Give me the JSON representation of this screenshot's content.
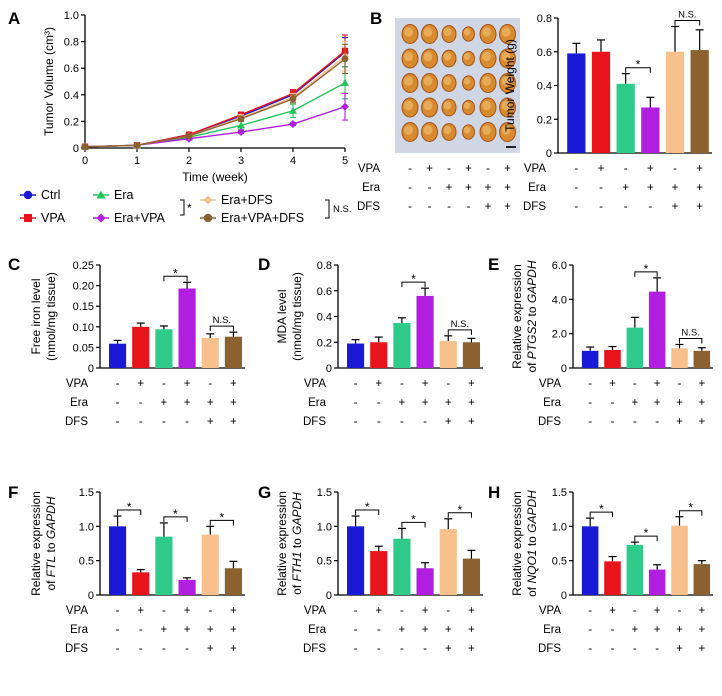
{
  "colors": {
    "Ctrl": "#1a1ad6",
    "VPA": "#e8141c",
    "Era": "#22c45a",
    "Era+VPA": "#b21ee0",
    "Era+DFS": "#f7c08c",
    "Era+VPA+DFS": "#8c6130",
    "Era_bar": "#2ecb8a"
  },
  "conditions": {
    "rows": [
      "VPA",
      "Era",
      "DFS"
    ],
    "VPA": [
      "-",
      "+",
      "-",
      "+",
      "-",
      "+"
    ],
    "Era": [
      "-",
      "-",
      "+",
      "+",
      "+",
      "+"
    ],
    "DFS": [
      "-",
      "-",
      "-",
      "-",
      "+",
      "+"
    ]
  },
  "panels": {
    "A": "A",
    "B": "B",
    "C": "C",
    "D": "D",
    "E": "E",
    "F": "F",
    "G": "G",
    "H": "H"
  },
  "legend": {
    "entries": [
      "Ctrl",
      "VPA",
      "Era",
      "Era+VPA",
      "Era+DFS",
      "Era+VPA+DFS"
    ],
    "star": "*",
    "ns": "N.S."
  },
  "photo": {
    "scale_bar": ""
  },
  "chart_data": [
    {
      "id": "A",
      "type": "line",
      "xlabel": "Time (week)",
      "ylabel": "Tumor Volume (cm³)",
      "x": [
        0,
        1,
        2,
        3,
        4,
        5
      ],
      "xlim": [
        0,
        5
      ],
      "ylim": [
        0,
        1.0
      ],
      "yticks": [
        "0",
        "0.2",
        "0.4",
        "0.6",
        "0.8",
        "1.0"
      ],
      "xticks": [
        "0",
        "1",
        "2",
        "3",
        "4",
        "5"
      ],
      "series": [
        {
          "name": "Ctrl",
          "values": [
            0.01,
            0.02,
            0.1,
            0.24,
            0.4,
            0.72
          ],
          "err": [
            0,
            0,
            0.01,
            0.02,
            0.03,
            0.11
          ]
        },
        {
          "name": "VPA",
          "values": [
            0.01,
            0.02,
            0.1,
            0.25,
            0.41,
            0.73
          ],
          "err": [
            0,
            0,
            0.01,
            0.02,
            0.03,
            0.12
          ]
        },
        {
          "name": "Era",
          "values": [
            0.01,
            0.02,
            0.08,
            0.17,
            0.28,
            0.49
          ],
          "err": [
            0,
            0,
            0.01,
            0.03,
            0.05,
            0.12
          ]
        },
        {
          "name": "Era+VPA",
          "values": [
            0.01,
            0.02,
            0.07,
            0.12,
            0.18,
            0.31
          ],
          "err": [
            0,
            0,
            0.01,
            0.01,
            0.01,
            0.1
          ]
        },
        {
          "name": "Era+DFS",
          "values": [
            0.01,
            0.02,
            0.09,
            0.23,
            0.38,
            0.69
          ],
          "err": [
            0,
            0,
            0.01,
            0.02,
            0.03,
            0.11
          ]
        },
        {
          "name": "Era+VPA+DFS",
          "values": [
            0.01,
            0.02,
            0.09,
            0.22,
            0.37,
            0.67
          ],
          "err": [
            0,
            0,
            0.01,
            0.02,
            0.03,
            0.11
          ]
        }
      ]
    },
    {
      "id": "B",
      "type": "bar",
      "ylabel": "Tumor Weight (g)",
      "ylim": [
        0,
        0.8
      ],
      "yticks": [
        "0",
        "0.2",
        "0.4",
        "0.6",
        "0.8"
      ],
      "values": [
        0.59,
        0.6,
        0.41,
        0.27,
        0.6,
        0.61
      ],
      "err": [
        0.06,
        0.07,
        0.06,
        0.06,
        0.15,
        0.12
      ],
      "sig": [
        {
          "a": 2,
          "b": 3,
          "text": "*"
        },
        {
          "a": 4,
          "b": 5,
          "text": "N.S."
        }
      ]
    },
    {
      "id": "C",
      "type": "bar",
      "ylabel": "Free iron level",
      "ylabel2": "(nmol/mg tissue)",
      "ylim": [
        0,
        0.25
      ],
      "yticks": [
        "0",
        "0.05",
        "0.10",
        "0.15",
        "0.20",
        "0.25"
      ],
      "values": [
        0.059,
        0.1,
        0.094,
        0.193,
        0.073,
        0.076
      ],
      "err": [
        0.008,
        0.009,
        0.008,
        0.015,
        0.01,
        0.011
      ],
      "sig": [
        {
          "a": 2,
          "b": 3,
          "text": "*"
        },
        {
          "a": 4,
          "b": 5,
          "text": "N.S."
        }
      ]
    },
    {
      "id": "D",
      "type": "bar",
      "ylabel": "MDA level",
      "ylabel2": "(nmol/mg tissue)",
      "ylim": [
        0,
        0.8
      ],
      "yticks": [
        "0",
        "0.2",
        "0.4",
        "0.6",
        "0.8"
      ],
      "values": [
        0.19,
        0.2,
        0.35,
        0.56,
        0.21,
        0.2
      ],
      "err": [
        0.03,
        0.04,
        0.04,
        0.06,
        0.04,
        0.03
      ],
      "sig": [
        {
          "a": 2,
          "b": 3,
          "text": "*"
        },
        {
          "a": 4,
          "b": 5,
          "text": "N.S."
        }
      ]
    },
    {
      "id": "E",
      "type": "bar",
      "ylabel": "Relative expression",
      "ylabel2_pre": "of ",
      "ylabel2_gene": "PTGS2",
      "ylabel2_post": " to ",
      "ylabel2_ref": "GAPDH",
      "ylim": [
        0,
        6.0
      ],
      "yticks": [
        "0",
        "2.0",
        "4.0",
        "6.0"
      ],
      "values": [
        1.0,
        1.05,
        2.35,
        4.45,
        1.15,
        1.0
      ],
      "err": [
        0.22,
        0.2,
        0.6,
        0.8,
        0.22,
        0.18
      ],
      "sig": [
        {
          "a": 2,
          "b": 3,
          "text": "*"
        },
        {
          "a": 4,
          "b": 5,
          "text": "N.S."
        }
      ]
    },
    {
      "id": "F",
      "type": "bar",
      "ylabel": "Relative expression",
      "ylabel2_pre": "of ",
      "ylabel2_gene": "FTL",
      "ylabel2_post": " to ",
      "ylabel2_ref": "GAPDH",
      "ylim": [
        0,
        1.5
      ],
      "yticks": [
        "0",
        "0.5",
        "1.0",
        "1.5"
      ],
      "values": [
        1.0,
        0.33,
        0.85,
        0.22,
        0.88,
        0.39
      ],
      "err": [
        0.15,
        0.04,
        0.2,
        0.03,
        0.12,
        0.1
      ],
      "sig": [
        {
          "a": 0,
          "b": 1,
          "text": "*"
        },
        {
          "a": 2,
          "b": 3,
          "text": "*"
        },
        {
          "a": 4,
          "b": 5,
          "text": "*"
        }
      ]
    },
    {
      "id": "G",
      "type": "bar",
      "ylabel": "Relative expression",
      "ylabel2_pre": "of ",
      "ylabel2_gene": "FTH1",
      "ylabel2_post": " to ",
      "ylabel2_ref": "GAPDH",
      "ylim": [
        0,
        1.5
      ],
      "yticks": [
        "0",
        "0.5",
        "1.0",
        "1.5"
      ],
      "values": [
        1.0,
        0.64,
        0.82,
        0.39,
        0.96,
        0.53
      ],
      "err": [
        0.15,
        0.07,
        0.15,
        0.08,
        0.15,
        0.12
      ],
      "sig": [
        {
          "a": 0,
          "b": 1,
          "text": "*"
        },
        {
          "a": 2,
          "b": 3,
          "text": "*"
        },
        {
          "a": 4,
          "b": 5,
          "text": "*"
        }
      ]
    },
    {
      "id": "H",
      "type": "bar",
      "ylabel": "Relative expression",
      "ylabel2_pre": "of ",
      "ylabel2_gene": "NQO1",
      "ylabel2_post": " to ",
      "ylabel2_ref": "GAPDH",
      "ylim": [
        0,
        1.5
      ],
      "yticks": [
        "0",
        "0.5",
        "1.0",
        "1.5"
      ],
      "values": [
        1.0,
        0.49,
        0.73,
        0.37,
        1.01,
        0.45
      ],
      "err": [
        0.12,
        0.07,
        0.04,
        0.07,
        0.13,
        0.05
      ],
      "sig": [
        {
          "a": 0,
          "b": 1,
          "text": "*"
        },
        {
          "a": 2,
          "b": 3,
          "text": "*"
        },
        {
          "a": 4,
          "b": 5,
          "text": "*"
        }
      ]
    }
  ]
}
